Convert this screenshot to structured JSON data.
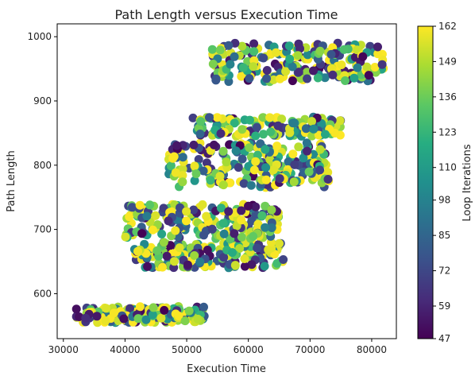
{
  "chart_data": {
    "type": "scatter",
    "title": "Path Length versus Execution Time",
    "xlabel": "Execution Time",
    "ylabel": "Path Length",
    "xlim": [
      29000,
      84000
    ],
    "ylim": [
      530,
      1020
    ],
    "x_ticks": [
      30000,
      40000,
      50000,
      60000,
      70000,
      80000
    ],
    "x_tick_labels": [
      "30000",
      "40000",
      "50000",
      "60000",
      "70000",
      "80000"
    ],
    "y_ticks": [
      600,
      700,
      800,
      900,
      1000
    ],
    "y_tick_labels": [
      "600",
      "700",
      "800",
      "900",
      "1000"
    ],
    "colorbar": {
      "label": "Loop Iterations",
      "colormap": "viridis",
      "range": [
        47,
        162
      ],
      "ticks": [
        47,
        59,
        72,
        85,
        98,
        110,
        123,
        136,
        149,
        162
      ],
      "tick_labels": [
        "47",
        "59",
        "72",
        "85",
        "98",
        "110",
        "123",
        "136",
        "149",
        "162"
      ]
    },
    "clusters": [
      {
        "x_range": [
          32000,
          53000
        ],
        "y_range": [
          555,
          580
        ],
        "points": 180
      },
      {
        "x_range": [
          41500,
          66000
        ],
        "y_range": [
          640,
          680
        ],
        "points": 170
      },
      {
        "x_range": [
          40000,
          65000
        ],
        "y_range": [
          685,
          740
        ],
        "points": 200
      },
      {
        "x_range": [
          47000,
          73000
        ],
        "y_range": [
          765,
          835
        ],
        "points": 240
      },
      {
        "x_range": [
          51000,
          75000
        ],
        "y_range": [
          845,
          875
        ],
        "points": 140
      },
      {
        "x_range": [
          54000,
          82000
        ],
        "y_range": [
          930,
          990
        ],
        "points": 220
      }
    ],
    "grid": false,
    "legend": "colorbar-right"
  }
}
